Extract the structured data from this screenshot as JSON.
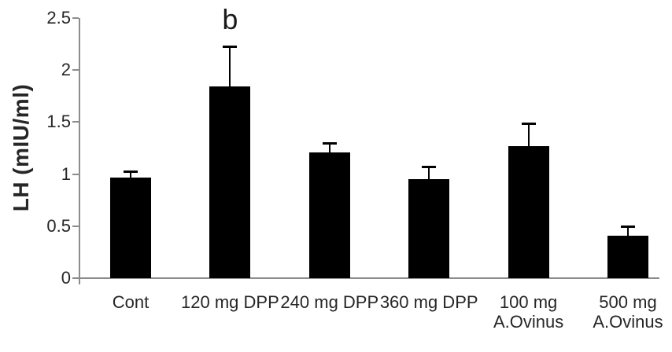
{
  "chart_data": {
    "type": "bar",
    "title": "",
    "xlabel": "",
    "ylabel": "LH (mIU/ml)",
    "ylim": [
      0,
      2.5
    ],
    "yticks": [
      0,
      0.5,
      1,
      1.5,
      2,
      2.5
    ],
    "categories": [
      "Cont",
      "120 mg DPP",
      "240 mg DPP",
      "360 mg DPP",
      "100 mg\nA.Ovinus",
      "500 mg\nA.Ovinus"
    ],
    "values": [
      0.97,
      1.84,
      1.21,
      0.95,
      1.27,
      0.41
    ],
    "errors_plus": [
      0.06,
      0.39,
      0.09,
      0.12,
      0.22,
      0.09
    ],
    "annotations": [
      {
        "text": "b",
        "category": "120 mg DPP",
        "category_index": 1
      }
    ],
    "bar_color": "#000000",
    "error_bar_color": "#000000",
    "axis_color": "#8c8c8c",
    "text_color": "#262626",
    "background_color": "#ffffff",
    "grid": false,
    "legend": false
  }
}
